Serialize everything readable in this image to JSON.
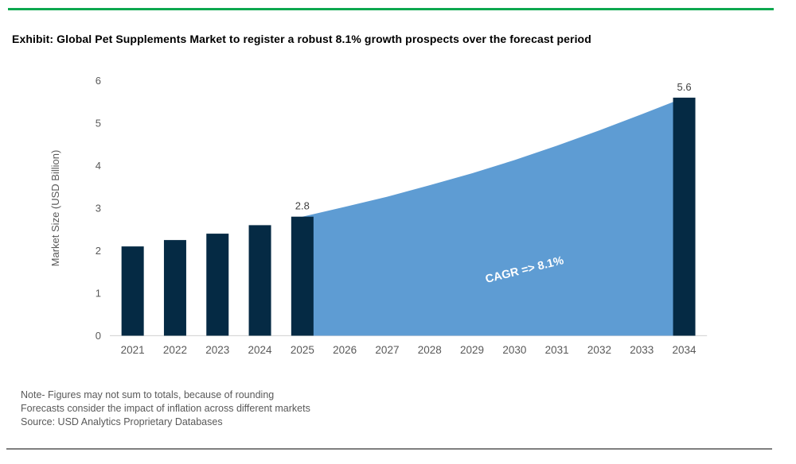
{
  "page": {
    "title": "Exhibit: Global Pet Supplements Market to register a robust 8.1% growth prospects over the forecast period",
    "accent_color": "#0DA84F",
    "bottom_divider_color": "#7F7F7F"
  },
  "notes": {
    "line1": "Note- Figures may not sum to totals, because of rounding",
    "line2": "Forecasts consider the impact of inflation across different markets",
    "line3": "Source: USD Analytics Proprietary Databases"
  },
  "chart_data": {
    "type": "bar",
    "title": "",
    "xlabel": "",
    "ylabel": "Market Size (USD Billion)",
    "ylim": [
      0,
      6
    ],
    "yticks": [
      0,
      1,
      2,
      3,
      4,
      5,
      6
    ],
    "grid": false,
    "legend": false,
    "categories": [
      "2021",
      "2022",
      "2023",
      "2024",
      "2025",
      "2026",
      "2027",
      "2028",
      "2029",
      "2030",
      "2031",
      "2032",
      "2033",
      "2034"
    ],
    "series": [
      {
        "name": "Historical market size (bars)",
        "type": "bar",
        "color": "#052A44",
        "values": [
          2.1,
          2.25,
          2.4,
          2.6,
          2.8,
          null,
          null,
          null,
          null,
          null,
          null,
          null,
          null,
          5.6
        ]
      },
      {
        "name": "Forecast market size (area)",
        "type": "area",
        "color": "#5E9CD3",
        "values": [
          null,
          null,
          null,
          null,
          2.8,
          3.03,
          3.27,
          3.54,
          3.82,
          4.13,
          4.47,
          4.83,
          5.21,
          5.6
        ]
      }
    ],
    "data_labels": [
      {
        "category": "2025",
        "text": "2.8"
      },
      {
        "category": "2034",
        "text": "5.6"
      }
    ],
    "data_label_color": "#404040",
    "annotation": {
      "text": "CAGR => 8.1%",
      "color": "#FFFFFF"
    },
    "axis_color": "#D9D9D9",
    "tick_color": "#595959"
  }
}
